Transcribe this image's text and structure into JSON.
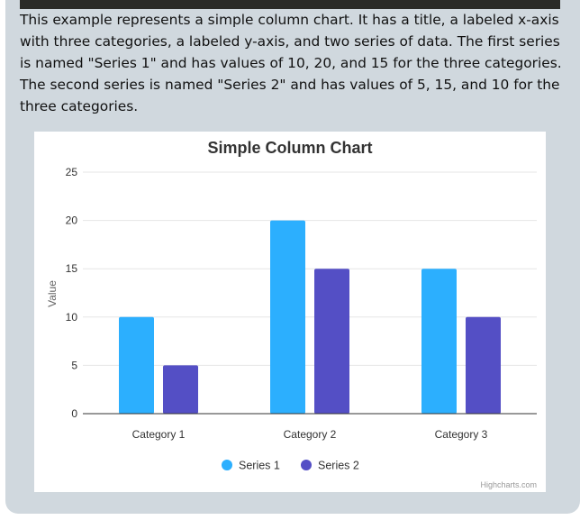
{
  "description": "This example represents a simple column chart. It has a title, a labeled x-axis with three categories, a labeled y-axis, and two series of data. The first series is named \"Series 1\" and has values of 10, 20, and 15 for the three categories. The second series is named \"Series 2\" and has values of 5, 15, and 10 for the three categories.",
  "credits": "Highcharts.com",
  "colors": {
    "series_1": "#2caffe",
    "series_2": "#544fc5",
    "panel_bg": "#d0d8de",
    "gridline": "#e6e6e6",
    "axis_line": "#333333"
  },
  "chart_data": {
    "type": "bar",
    "title": "Simple Column Chart",
    "xlabel": "",
    "ylabel": "Value",
    "categories": [
      "Category 1",
      "Category 2",
      "Category 3"
    ],
    "series": [
      {
        "name": "Series 1",
        "values": [
          10,
          20,
          15
        ]
      },
      {
        "name": "Series 2",
        "values": [
          5,
          15,
          10
        ]
      }
    ],
    "ylim": [
      0,
      25
    ],
    "yticks": [
      0,
      5,
      10,
      15,
      20,
      25
    ],
    "grid": true,
    "legend_position": "bottom-center"
  }
}
